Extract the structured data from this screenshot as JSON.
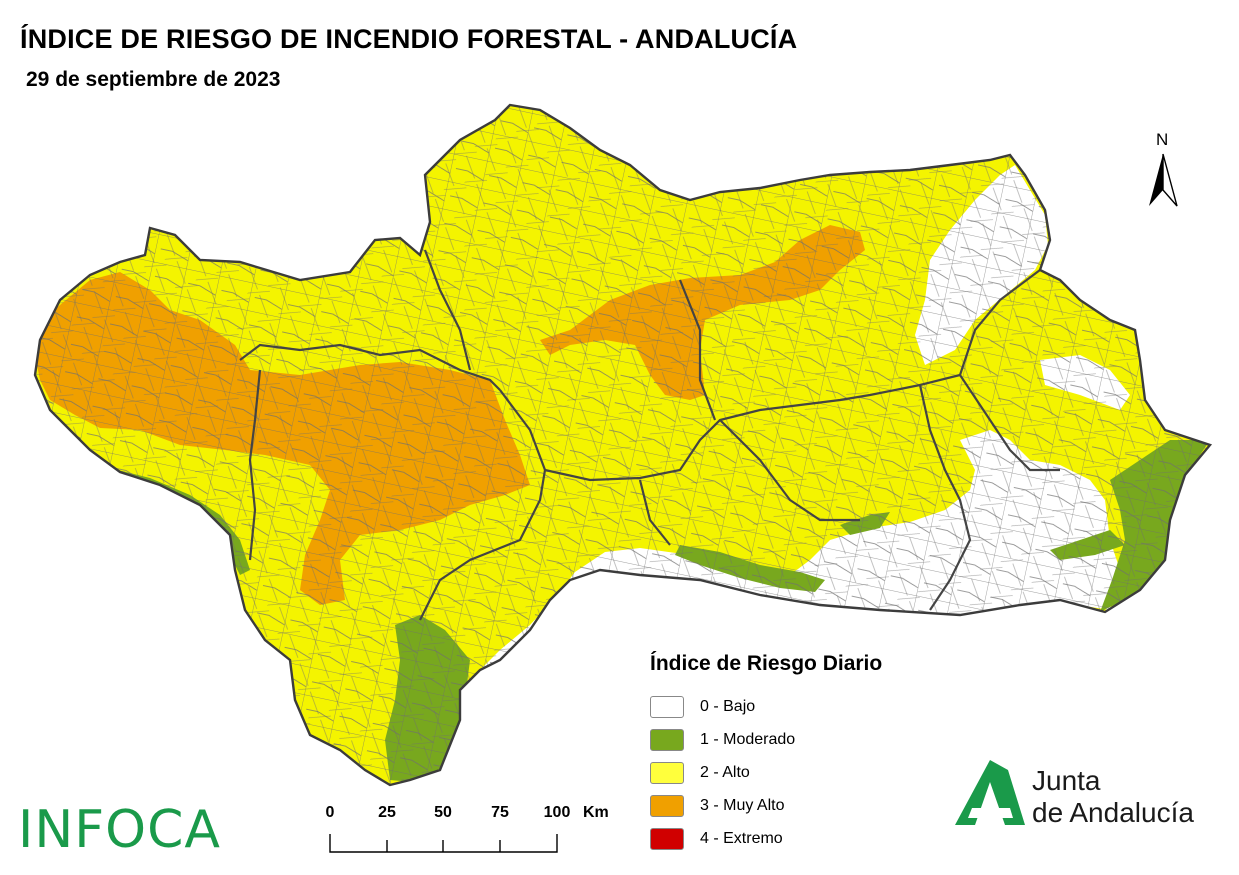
{
  "header": {
    "title": "ÍNDICE DE RIESGO DE INCENDIO FORESTAL - ANDALUCÍA",
    "date": "29 de septiembre de 2023"
  },
  "north_arrow": {
    "label": "N"
  },
  "legend": {
    "title": "Índice de Riesgo Diario",
    "items": [
      {
        "label": "0 - Bajo",
        "color": "#ffffff"
      },
      {
        "label": "1 - Moderado",
        "color": "#78a81e"
      },
      {
        "label": "2 - Alto",
        "color": "#ffff3c"
      },
      {
        "label": "3 - Muy Alto",
        "color": "#f0a000"
      },
      {
        "label": "4 - Extremo",
        "color": "#d00000"
      }
    ]
  },
  "scale_bar": {
    "ticks": [
      "0",
      "25",
      "50",
      "75",
      "100"
    ],
    "unit": "Km"
  },
  "logos": {
    "infoca": "INFOCA",
    "junta_line1": "Junta",
    "junta_line2": "de Andalucía"
  },
  "colors": {
    "bajo": "#ffffff",
    "moderado": "#78a81e",
    "alto": "#f4f400",
    "muy_alto": "#f0a000",
    "extremo": "#d00000",
    "border": "#555555"
  }
}
